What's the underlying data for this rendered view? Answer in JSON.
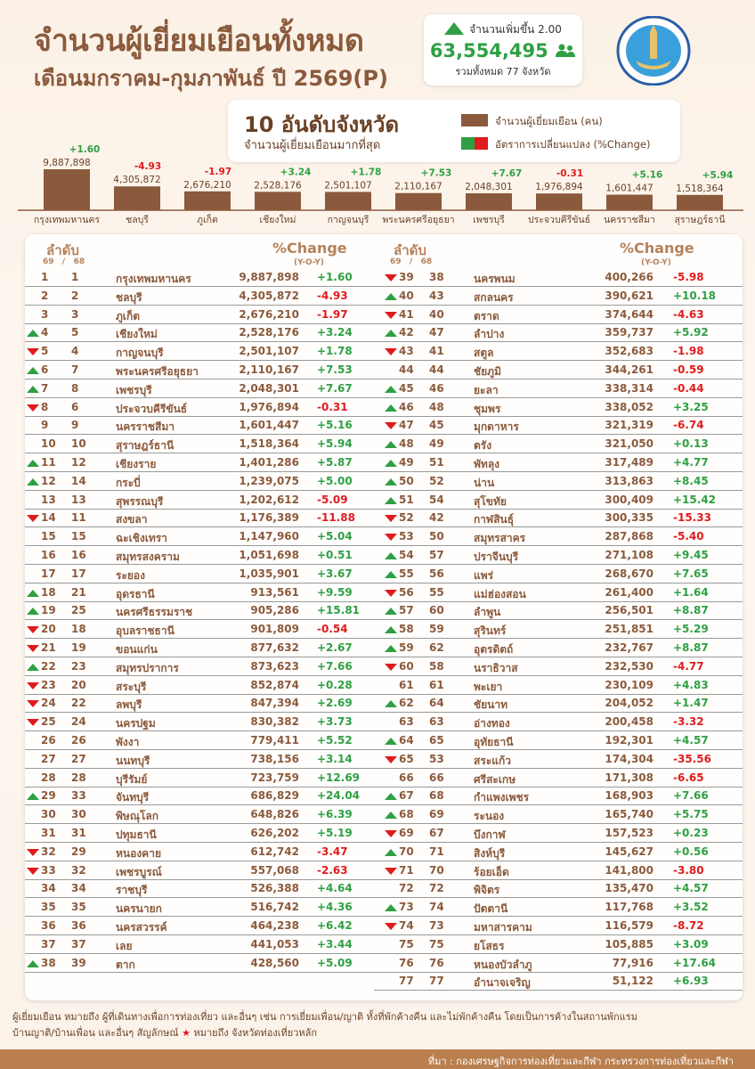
{
  "header": {
    "title": "จำนวนผู้เยี่ยมเยือนทั้งหมด",
    "subtitle": "เดือนมกราคม-กุมภาพันธ์ ปี 2569(P)",
    "logo_text": "MINISTRY OF TOURISM AND SPORTS"
  },
  "stat": {
    "increase_label": "จำนวนเพิ่มขึ้น 2.00",
    "total": "63,554,495",
    "provinces": "รวมทั้งหมด 77 จังหวัด",
    "icon": "people-icon"
  },
  "legend": {
    "title": "10 อันดับจังหวัด",
    "subtitle": "จำนวนผู้เยี่ยมเยือนมากที่สุด",
    "visitors_label": "จำนวนผู้เยี่ยมเยือน (คน)",
    "change_label": "อัตราการเปลี่ยนแปลง (%Change)"
  },
  "colors": {
    "bar": "#8b5a3c",
    "positive": "#2ea043",
    "negative": "#e01b1b",
    "footer": "#b97f4f"
  },
  "chart_data": {
    "type": "bar",
    "categories": [
      "กรุงเทพมหานคร",
      "ชลบุรี",
      "ภูเก็ต",
      "เชียงใหม่",
      "กาญจนบุรี",
      "พระนครศรีอยุธยา",
      "เพชรบุรี",
      "ประจวบคีรีขันธ์",
      "นครราชสีมา",
      "สุราษฎร์ธานี"
    ],
    "values": [
      9887898,
      4305872,
      2676210,
      2528176,
      2501107,
      2110167,
      2048301,
      1976894,
      1601447,
      1518364
    ],
    "value_labels": [
      "9,887,898",
      "4,305,872",
      "2,676,210",
      "2,528,176",
      "2,501,107",
      "2,110,167",
      "2,048,301",
      "1,976,894",
      "1,601,447",
      "1,518,364"
    ],
    "change": [
      "+1.60",
      "-4.93",
      "-1.97",
      "+3.24",
      "+1.78",
      "+7.53",
      "+7.67",
      "-0.31",
      "+5.16",
      "+5.94"
    ]
  },
  "table": {
    "rank_label": "ลำดับ",
    "year_label": "69   /   68",
    "change_label": "%Change",
    "yoy_label": "(Y-O-Y)",
    "rows": [
      [
        1,
        1,
        "กรุงเทพมหานคร",
        1,
        "9,887,898",
        "+1.60",
        ""
      ],
      [
        2,
        2,
        "ชลบุรี",
        1,
        "4,305,872",
        "-4.93",
        ""
      ],
      [
        3,
        3,
        "ภูเก็ต",
        1,
        "2,676,210",
        "-1.97",
        ""
      ],
      [
        4,
        5,
        "เชียงใหม่",
        1,
        "2,528,176",
        "+3.24",
        "up"
      ],
      [
        5,
        4,
        "กาญจนบุรี",
        1,
        "2,501,107",
        "+1.78",
        "down"
      ],
      [
        6,
        7,
        "พระนครศรีอยุธยา",
        1,
        "2,110,167",
        "+7.53",
        "up"
      ],
      [
        7,
        8,
        "เพชรบุรี",
        1,
        "2,048,301",
        "+7.67",
        "up"
      ],
      [
        8,
        6,
        "ประจวบคีรีขันธ์",
        1,
        "1,976,894",
        "-0.31",
        "down"
      ],
      [
        9,
        9,
        "นครราชสีมา",
        1,
        "1,601,447",
        "+5.16",
        ""
      ],
      [
        10,
        10,
        "สุราษฎร์ธานี",
        1,
        "1,518,364",
        "+5.94",
        ""
      ],
      [
        11,
        12,
        "เชียงราย",
        0,
        "1,401,286",
        "+5.87",
        "up"
      ],
      [
        12,
        14,
        "กระบี่",
        1,
        "1,239,075",
        "+5.00",
        "up"
      ],
      [
        13,
        13,
        "สุพรรณบุรี",
        0,
        "1,202,612",
        "-5.09",
        ""
      ],
      [
        14,
        11,
        "สงขลา",
        1,
        "1,176,389",
        "-11.88",
        "down"
      ],
      [
        15,
        15,
        "ฉะเชิงเทรา",
        1,
        "1,147,960",
        "+5.04",
        ""
      ],
      [
        16,
        16,
        "สมุทรสงคราม",
        0,
        "1,051,698",
        "+0.51",
        ""
      ],
      [
        17,
        17,
        "ระยอง",
        1,
        "1,035,901",
        "+3.67",
        ""
      ],
      [
        18,
        21,
        "อุดรธานี",
        0,
        "913,561",
        "+9.59",
        "up"
      ],
      [
        19,
        25,
        "นครศรีธรรมราช",
        0,
        "905,286",
        "+15.81",
        "up"
      ],
      [
        20,
        18,
        "อุบลราชธานี",
        0,
        "901,809",
        "-0.54",
        "down"
      ],
      [
        21,
        19,
        "ขอนแก่น",
        1,
        "877,632",
        "+2.67",
        "down"
      ],
      [
        22,
        23,
        "สมุทรปราการ",
        1,
        "873,623",
        "+7.66",
        "up"
      ],
      [
        23,
        20,
        "สระบุรี",
        1,
        "852,874",
        "+0.28",
        "down"
      ],
      [
        24,
        22,
        "ลพบุรี",
        0,
        "847,394",
        "+2.69",
        "down"
      ],
      [
        25,
        24,
        "นครปฐม",
        1,
        "830,382",
        "+3.73",
        "down"
      ],
      [
        26,
        26,
        "พังงา",
        1,
        "779,411",
        "+5.52",
        ""
      ],
      [
        27,
        27,
        "นนทบุรี",
        1,
        "738,156",
        "+3.14",
        ""
      ],
      [
        28,
        28,
        "บุรีรัมย์",
        0,
        "723,759",
        "+12.69",
        ""
      ],
      [
        29,
        33,
        "จันทบุรี",
        0,
        "686,829",
        "+24.04",
        "up"
      ],
      [
        30,
        30,
        "พิษณุโลก",
        0,
        "648,826",
        "+6.39",
        ""
      ],
      [
        31,
        31,
        "ปทุมธานี",
        1,
        "626,202",
        "+5.19",
        ""
      ],
      [
        32,
        29,
        "หนองคาย",
        0,
        "612,742",
        "-3.47",
        "down"
      ],
      [
        33,
        32,
        "เพชรบูรณ์",
        0,
        "557,068",
        "-2.63",
        "down"
      ],
      [
        34,
        34,
        "ราชบุรี",
        0,
        "526,388",
        "+4.64",
        ""
      ],
      [
        35,
        35,
        "นครนายก",
        0,
        "516,742",
        "+4.36",
        ""
      ],
      [
        36,
        36,
        "นครสวรรค์",
        0,
        "464,238",
        "+6.42",
        ""
      ],
      [
        37,
        37,
        "เลย",
        0,
        "441,053",
        "+3.44",
        ""
      ],
      [
        38,
        39,
        "ตาก",
        0,
        "428,560",
        "+5.09",
        "up"
      ],
      [
        39,
        38,
        "นครพนม",
        0,
        "400,266",
        "-5.98",
        "down"
      ],
      [
        40,
        43,
        "สกลนคร",
        0,
        "390,621",
        "+10.18",
        "up"
      ],
      [
        41,
        40,
        "ตราด",
        0,
        "374,644",
        "-4.63",
        "down"
      ],
      [
        42,
        47,
        "ลำปาง",
        0,
        "359,737",
        "+5.92",
        "up"
      ],
      [
        43,
        41,
        "สตูล",
        0,
        "352,683",
        "-1.98",
        "down"
      ],
      [
        44,
        44,
        "ชัยภูมิ",
        0,
        "344,261",
        "-0.59",
        ""
      ],
      [
        45,
        46,
        "ยะลา",
        0,
        "338,314",
        "-0.44",
        "up"
      ],
      [
        46,
        48,
        "ชุมพร",
        0,
        "338,052",
        "+3.25",
        "up"
      ],
      [
        47,
        45,
        "มุกดาหาร",
        0,
        "321,319",
        "-6.74",
        "down"
      ],
      [
        48,
        49,
        "ตรัง",
        0,
        "321,050",
        "+0.13",
        "up"
      ],
      [
        49,
        51,
        "พัทลุง",
        0,
        "317,489",
        "+4.77",
        "up"
      ],
      [
        50,
        52,
        "น่าน",
        0,
        "313,863",
        "+8.45",
        "up"
      ],
      [
        51,
        54,
        "สุโขทัย",
        0,
        "300,409",
        "+15.42",
        "up"
      ],
      [
        52,
        42,
        "กาฬสินธุ์",
        0,
        "300,335",
        "-15.33",
        "down"
      ],
      [
        53,
        50,
        "สมุทรสาคร",
        1,
        "287,868",
        "-5.40",
        "down"
      ],
      [
        54,
        57,
        "ปราจีนบุรี",
        0,
        "271,108",
        "+9.45",
        "up"
      ],
      [
        55,
        56,
        "แพร่",
        0,
        "268,670",
        "+7.65",
        "up"
      ],
      [
        56,
        55,
        "แม่ฮ่องสอน",
        0,
        "261,400",
        "+1.64",
        "down"
      ],
      [
        57,
        60,
        "ลำพูน",
        0,
        "256,501",
        "+8.87",
        "up"
      ],
      [
        58,
        59,
        "สุรินทร์",
        0,
        "251,851",
        "+5.29",
        "up"
      ],
      [
        59,
        62,
        "อุตรดิตถ์",
        0,
        "232,767",
        "+8.87",
        "up"
      ],
      [
        60,
        58,
        "นราธิวาส",
        0,
        "232,530",
        "-4.77",
        "down"
      ],
      [
        61,
        61,
        "พะเยา",
        0,
        "230,109",
        "+4.83",
        ""
      ],
      [
        62,
        64,
        "ชัยนาท",
        0,
        "204,052",
        "+1.47",
        "up"
      ],
      [
        63,
        63,
        "อ่างทอง",
        0,
        "200,458",
        "-3.32",
        ""
      ],
      [
        64,
        65,
        "อุทัยธานี",
        0,
        "192,301",
        "+4.57",
        "up"
      ],
      [
        65,
        53,
        "สระแก้ว",
        0,
        "174,304",
        "-35.56",
        "down"
      ],
      [
        66,
        66,
        "ศรีสะเกษ",
        0,
        "171,308",
        "-6.65",
        ""
      ],
      [
        67,
        68,
        "กำแพงเพชร",
        0,
        "168,903",
        "+7.66",
        "up"
      ],
      [
        68,
        69,
        "ระนอง",
        0,
        "165,740",
        "+5.75",
        "up"
      ],
      [
        69,
        67,
        "บึงกาฬ",
        0,
        "157,523",
        "+0.23",
        "down"
      ],
      [
        70,
        71,
        "สิงห์บุรี",
        0,
        "145,627",
        "+0.56",
        "up"
      ],
      [
        71,
        70,
        "ร้อยเอ็ด",
        0,
        "141,800",
        "-3.80",
        "down"
      ],
      [
        72,
        72,
        "พิจิตร",
        0,
        "135,470",
        "+4.57",
        ""
      ],
      [
        73,
        74,
        "ปัตตานี",
        0,
        "117,768",
        "+3.52",
        "up"
      ],
      [
        74,
        73,
        "มหาสารคาม",
        0,
        "116,579",
        "-8.72",
        "down"
      ],
      [
        75,
        75,
        "ยโสธร",
        0,
        "105,885",
        "+3.09",
        ""
      ],
      [
        76,
        76,
        "หนองบัวลำภู",
        0,
        "77,916",
        "+17.64",
        ""
      ],
      [
        77,
        77,
        "อำนาจเจริญ",
        0,
        "51,122",
        "+6.93",
        ""
      ]
    ]
  },
  "note": {
    "line1": "ผู้เยี่ยมเยือน หมายถึง ผู้ที่เดินทางเพื่อการท่องเที่ยว และอื่นๆ เช่น การเยี่ยมเพื่อน/ญาติ ทั้งที่พักค้างคืน และไม่พักค้างคืน โดยเป็นการค้างในสถานพักแรม",
    "line2_a": "บ้านญาติ/บ้านเพื่อน และอื่นๆ สัญลักษณ์",
    "line2_b": "หมายถึง จังหวัดท่องเที่ยวหลัก"
  },
  "footer": {
    "source": "ที่มา : กองเศรษฐกิจการท่องเที่ยวและกีฬา กระทรวงการท่องเที่ยวและกีฬา"
  }
}
